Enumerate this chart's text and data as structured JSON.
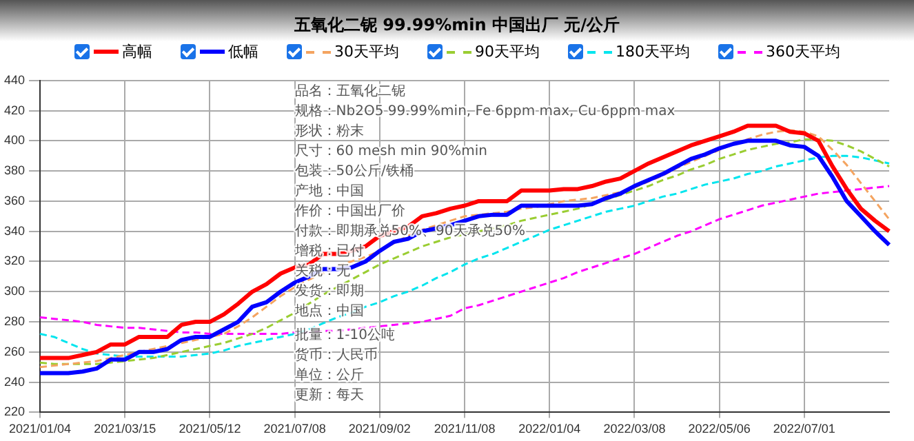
{
  "chart_data": {
    "type": "line",
    "title": "五氧化二铌 99.99%min 中国出厂 元/公斤",
    "categories": [
      "2021/01/04",
      null,
      null,
      null,
      null,
      null,
      "2021/03/15",
      null,
      null,
      null,
      null,
      null,
      "2021/05/12",
      null,
      null,
      null,
      null,
      null,
      "2021/07/08",
      null,
      null,
      null,
      null,
      null,
      "2021/09/02",
      null,
      null,
      null,
      null,
      null,
      "2021/11/08",
      null,
      null,
      null,
      null,
      null,
      "2022/01/04",
      null,
      null,
      null,
      null,
      null,
      "2022/03/08",
      null,
      null,
      null,
      null,
      null,
      "2022/05/06",
      null,
      null,
      null,
      null,
      null,
      "2022/07/01",
      null,
      null,
      null,
      null,
      null,
      null
    ],
    "ylim": [
      220,
      440
    ],
    "yticks": [
      220,
      240,
      260,
      280,
      300,
      320,
      340,
      360,
      380,
      400,
      420,
      440
    ],
    "grid": true,
    "legend": "top",
    "marker": "none",
    "series": [
      {
        "name": "高幅",
        "color": "#ff0000",
        "line_style": "solid",
        "values": [
          256,
          256,
          256,
          258,
          260,
          265,
          265,
          270,
          270,
          270,
          278,
          280,
          280,
          285,
          292,
          300,
          305,
          312,
          316,
          318,
          325,
          325,
          327,
          330,
          337,
          340,
          343,
          350,
          352,
          355,
          357,
          360,
          360,
          360,
          367,
          367,
          367,
          368,
          368,
          370,
          373,
          375,
          380,
          385,
          389,
          393,
          397,
          400,
          403,
          406,
          410,
          410,
          410,
          406,
          405,
          400,
          383,
          368,
          355,
          347,
          340
        ]
      },
      {
        "name": "低幅",
        "color": "#0000ff",
        "line_style": "solid",
        "values": [
          246,
          246,
          246,
          247,
          249,
          255,
          255,
          260,
          260,
          262,
          268,
          270,
          270,
          275,
          280,
          290,
          293,
          300,
          306,
          310,
          315,
          315,
          316,
          320,
          327,
          333,
          335,
          340,
          342,
          344,
          347,
          350,
          351,
          351,
          357,
          357,
          357,
          357,
          357,
          358,
          362,
          365,
          370,
          374,
          378,
          383,
          388,
          391,
          395,
          398,
          400,
          400,
          400,
          397,
          396,
          390,
          376,
          360,
          350,
          340,
          331
        ]
      },
      {
        "name": "30天平均",
        "color": "#f4a460",
        "line_style": "dashed",
        "values": [
          250,
          251,
          252,
          253,
          254,
          256,
          258,
          260,
          262,
          264,
          266,
          268,
          270,
          272,
          277,
          283,
          290,
          297,
          303,
          308,
          312,
          317,
          320,
          323,
          327,
          332,
          337,
          341,
          344,
          347,
          350,
          351,
          352,
          353,
          355,
          356,
          358,
          360,
          361,
          362,
          364,
          366,
          369,
          373,
          377,
          382,
          386,
          390,
          394,
          398,
          401,
          404,
          406,
          407,
          406,
          403,
          394,
          384,
          372,
          360,
          348
        ]
      },
      {
        "name": "90天平均",
        "color": "#9acd32",
        "line_style": "dashed",
        "values": [
          253,
          252,
          252,
          252,
          252,
          253,
          254,
          255,
          256,
          258,
          260,
          262,
          264,
          266,
          269,
          272,
          276,
          281,
          286,
          292,
          298,
          303,
          308,
          313,
          318,
          322,
          326,
          330,
          333,
          336,
          338,
          340,
          342,
          344,
          347,
          349,
          351,
          353,
          355,
          358,
          361,
          364,
          367,
          370,
          374,
          377,
          381,
          384,
          388,
          391,
          394,
          396,
          398,
          399,
          401,
          401,
          400,
          397,
          393,
          388,
          383
        ]
      },
      {
        "name": "180天平均",
        "color": "#00e5ee",
        "line_style": "dashed",
        "values": [
          272,
          270,
          266,
          262,
          259,
          258,
          257,
          257,
          257,
          257,
          257,
          258,
          259,
          261,
          264,
          266,
          268,
          270,
          272,
          275,
          279,
          283,
          286,
          290,
          293,
          297,
          300,
          304,
          309,
          313,
          318,
          322,
          325,
          329,
          333,
          337,
          341,
          344,
          347,
          350,
          353,
          355,
          357,
          360,
          363,
          365,
          368,
          371,
          373,
          375,
          378,
          380,
          383,
          385,
          387,
          389,
          390,
          390,
          389,
          387,
          385
        ]
      },
      {
        "name": "360天平均",
        "color": "#ff00ff",
        "line_style": "dashed",
        "values": [
          283,
          282,
          281,
          280,
          278,
          277,
          276,
          276,
          275,
          274,
          273,
          273,
          272,
          272,
          272,
          272,
          272,
          272,
          273,
          273,
          274,
          274,
          275,
          276,
          277,
          278,
          279,
          280,
          282,
          284,
          289,
          291,
          294,
          297,
          300,
          303,
          306,
          309,
          313,
          316,
          319,
          322,
          325,
          329,
          333,
          337,
          340,
          344,
          348,
          351,
          354,
          357,
          359,
          361,
          363,
          365,
          366,
          367,
          368,
          369,
          370
        ]
      }
    ],
    "annotations": [
      "品名：五氧化二铌",
      "规格：Nb2O5 99.99%min, Fe 6ppm max, Cu 6ppm max",
      "形状：粉末",
      "尺寸：60 mesh min 90%min",
      "包装：50公斤/铁桶",
      "产地：中国",
      "作价：中国出厂价",
      "付款：即期承兑50%、90天承兑50%",
      "增税：已付",
      "关税：无",
      "发货：即期",
      "地点：中国",
      "批量：1-10公吨",
      "货币：人民币",
      "单位：公斤",
      "更新：每天"
    ]
  }
}
